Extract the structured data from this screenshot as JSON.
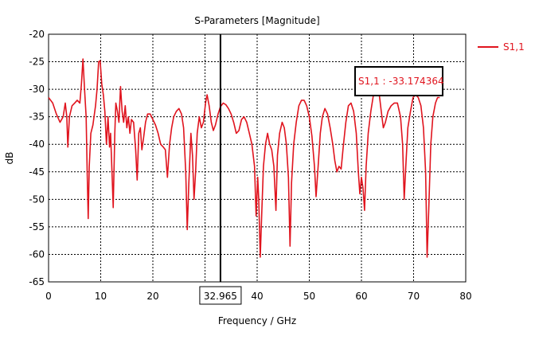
{
  "chart_data": {
    "type": "line",
    "title": "S-Parameters [Magnitude]",
    "xlabel": "Frequency / GHz",
    "ylabel": "dB",
    "xlim": [
      0,
      80
    ],
    "ylim": [
      -65,
      -20
    ],
    "x_ticks": [
      "0",
      "10",
      "20",
      "30",
      "40",
      "50",
      "60",
      "70",
      "80"
    ],
    "y_ticks": [
      "-20",
      "-25",
      "-30",
      "-35",
      "-40",
      "-45",
      "-50",
      "-55",
      "-60",
      "-65"
    ],
    "grid": true,
    "legend_position": "top-right",
    "series": [
      {
        "name": "S1,1",
        "color": "#e0141e",
        "points": [
          [
            0.0,
            -31.5
          ],
          [
            0.8,
            -32.5
          ],
          [
            1.5,
            -34.5
          ],
          [
            2.2,
            -36.0
          ],
          [
            2.8,
            -35.0
          ],
          [
            3.2,
            -32.5
          ],
          [
            3.5,
            -35.0
          ],
          [
            3.7,
            -40.5
          ],
          [
            4.0,
            -35.0
          ],
          [
            4.5,
            -33.0
          ],
          [
            5.0,
            -32.5
          ],
          [
            5.5,
            -32.0
          ],
          [
            6.0,
            -32.5
          ],
          [
            6.3,
            -29.0
          ],
          [
            6.6,
            -24.5
          ],
          [
            6.9,
            -30.0
          ],
          [
            7.2,
            -35.0
          ],
          [
            7.4,
            -45.0
          ],
          [
            7.6,
            -53.5
          ],
          [
            7.8,
            -44.0
          ],
          [
            8.1,
            -38.0
          ],
          [
            8.5,
            -36.5
          ],
          [
            9.0,
            -33.0
          ],
          [
            9.3,
            -30.0
          ],
          [
            9.6,
            -25.0
          ],
          [
            9.9,
            -24.8
          ],
          [
            10.2,
            -29.0
          ],
          [
            10.5,
            -31.0
          ],
          [
            10.8,
            -34.0
          ],
          [
            11.1,
            -40.0
          ],
          [
            11.4,
            -35.0
          ],
          [
            11.7,
            -40.5
          ],
          [
            11.9,
            -38.0
          ],
          [
            12.2,
            -46.0
          ],
          [
            12.4,
            -51.5
          ],
          [
            12.7,
            -38.0
          ],
          [
            12.9,
            -32.5
          ],
          [
            13.2,
            -34.0
          ],
          [
            13.5,
            -36.0
          ],
          [
            13.8,
            -29.5
          ],
          [
            14.1,
            -34.0
          ],
          [
            14.4,
            -36.0
          ],
          [
            14.7,
            -33.0
          ],
          [
            15.0,
            -37.0
          ],
          [
            15.3,
            -35.0
          ],
          [
            15.6,
            -38.0
          ],
          [
            15.9,
            -35.5
          ],
          [
            16.3,
            -36.0
          ],
          [
            16.7,
            -41.0
          ],
          [
            17.0,
            -46.5
          ],
          [
            17.3,
            -38.0
          ],
          [
            17.6,
            -37.0
          ],
          [
            17.9,
            -41.0
          ],
          [
            18.2,
            -39.0
          ],
          [
            18.6,
            -36.0
          ],
          [
            19.0,
            -34.5
          ],
          [
            19.5,
            -34.5
          ],
          [
            20.0,
            -35.5
          ],
          [
            20.5,
            -36.5
          ],
          [
            21.0,
            -38.0
          ],
          [
            21.5,
            -40.0
          ],
          [
            22.0,
            -40.5
          ],
          [
            22.4,
            -41.0
          ],
          [
            22.8,
            -46.0
          ],
          [
            23.2,
            -40.0
          ],
          [
            23.6,
            -37.0
          ],
          [
            24.0,
            -35.0
          ],
          [
            24.5,
            -34.0
          ],
          [
            25.0,
            -33.5
          ],
          [
            25.5,
            -34.5
          ],
          [
            25.9,
            -37.0
          ],
          [
            26.3,
            -45.0
          ],
          [
            26.6,
            -55.5
          ],
          [
            26.9,
            -47.0
          ],
          [
            27.3,
            -38.0
          ],
          [
            27.6,
            -42.0
          ],
          [
            27.9,
            -50.0
          ],
          [
            28.2,
            -45.0
          ],
          [
            28.5,
            -38.0
          ],
          [
            28.9,
            -35.0
          ],
          [
            29.3,
            -37.0
          ],
          [
            29.7,
            -36.0
          ],
          [
            30.1,
            -32.5
          ],
          [
            30.4,
            -31.0
          ],
          [
            30.8,
            -33.0
          ],
          [
            31.2,
            -36.0
          ],
          [
            31.6,
            -37.5
          ],
          [
            32.0,
            -36.5
          ],
          [
            32.5,
            -34.5
          ],
          [
            32.965,
            -33.174
          ],
          [
            33.5,
            -32.5
          ],
          [
            34.0,
            -32.8
          ],
          [
            34.5,
            -33.5
          ],
          [
            35.0,
            -34.5
          ],
          [
            35.5,
            -36.0
          ],
          [
            36.0,
            -38.0
          ],
          [
            36.5,
            -37.5
          ],
          [
            37.0,
            -35.5
          ],
          [
            37.5,
            -35.0
          ],
          [
            38.0,
            -36.0
          ],
          [
            38.5,
            -38.0
          ],
          [
            39.0,
            -40.0
          ],
          [
            39.5,
            -44.0
          ],
          [
            39.8,
            -53.0
          ],
          [
            40.1,
            -46.0
          ],
          [
            40.3,
            -50.0
          ],
          [
            40.6,
            -60.5
          ],
          [
            40.9,
            -52.0
          ],
          [
            41.2,
            -44.0
          ],
          [
            41.6,
            -40.0
          ],
          [
            42.0,
            -38.0
          ],
          [
            42.4,
            -40.0
          ],
          [
            42.8,
            -41.0
          ],
          [
            43.2,
            -44.0
          ],
          [
            43.6,
            -52.0
          ],
          [
            43.9,
            -42.0
          ],
          [
            44.3,
            -38.0
          ],
          [
            44.8,
            -36.0
          ],
          [
            45.2,
            -37.0
          ],
          [
            45.6,
            -40.0
          ],
          [
            46.0,
            -46.0
          ],
          [
            46.3,
            -58.5
          ],
          [
            46.6,
            -47.0
          ],
          [
            47.0,
            -40.0
          ],
          [
            47.5,
            -36.0
          ],
          [
            48.0,
            -33.0
          ],
          [
            48.5,
            -32.0
          ],
          [
            49.0,
            -32.0
          ],
          [
            49.5,
            -33.0
          ],
          [
            50.0,
            -35.0
          ],
          [
            50.5,
            -38.5
          ],
          [
            51.0,
            -44.0
          ],
          [
            51.3,
            -49.5
          ],
          [
            51.7,
            -44.0
          ],
          [
            52.1,
            -38.0
          ],
          [
            52.5,
            -35.0
          ],
          [
            53.0,
            -33.5
          ],
          [
            53.5,
            -34.5
          ],
          [
            54.0,
            -37.0
          ],
          [
            54.5,
            -40.0
          ],
          [
            54.9,
            -43.0
          ],
          [
            55.3,
            -45.0
          ],
          [
            55.7,
            -44.0
          ],
          [
            56.1,
            -44.5
          ],
          [
            56.5,
            -40.5
          ],
          [
            57.0,
            -36.0
          ],
          [
            57.5,
            -33.0
          ],
          [
            58.0,
            -32.5
          ],
          [
            58.5,
            -34.0
          ],
          [
            59.0,
            -38.0
          ],
          [
            59.4,
            -45.0
          ],
          [
            59.7,
            -49.0
          ],
          [
            60.0,
            -46.0
          ],
          [
            60.3,
            -48.0
          ],
          [
            60.6,
            -52.0
          ],
          [
            60.9,
            -44.0
          ],
          [
            61.3,
            -38.0
          ],
          [
            61.8,
            -34.0
          ],
          [
            62.3,
            -31.0
          ],
          [
            62.8,
            -28.5
          ],
          [
            63.3,
            -30.0
          ],
          [
            63.8,
            -34.0
          ],
          [
            64.2,
            -37.0
          ],
          [
            64.6,
            -36.0
          ],
          [
            65.1,
            -34.0
          ],
          [
            65.7,
            -33.0
          ],
          [
            66.3,
            -32.5
          ],
          [
            66.9,
            -32.5
          ],
          [
            67.5,
            -35.0
          ],
          [
            67.9,
            -40.0
          ],
          [
            68.2,
            -50.0
          ],
          [
            68.5,
            -44.0
          ],
          [
            68.9,
            -37.0
          ],
          [
            69.4,
            -34.0
          ],
          [
            69.9,
            -31.5
          ],
          [
            70.4,
            -31.0
          ],
          [
            70.9,
            -31.5
          ],
          [
            71.4,
            -33.0
          ],
          [
            71.9,
            -37.0
          ],
          [
            72.3,
            -45.0
          ],
          [
            72.6,
            -60.5
          ],
          [
            72.9,
            -52.0
          ],
          [
            73.3,
            -40.0
          ],
          [
            73.7,
            -35.0
          ],
          [
            74.2,
            -32.5
          ],
          [
            74.6,
            -31.5
          ],
          [
            75.0,
            -31.5
          ]
        ]
      }
    ],
    "marker": {
      "x": 32.965,
      "x_label": "32.965",
      "label": "S1,1 : -33.174364"
    }
  }
}
